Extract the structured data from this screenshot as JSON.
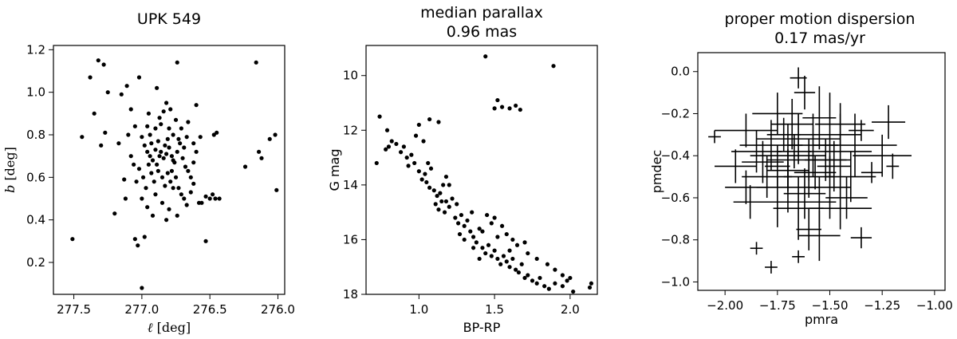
{
  "chart_data": [
    {
      "type": "scatter",
      "title": "UPK 549",
      "xlabel_symbol": "ℓ",
      "xlabel_unit": " [deg]",
      "ylabel_symbol": "b",
      "ylabel_unit": " [deg]",
      "xlim": [
        277.65,
        275.95
      ],
      "ylim": [
        0.05,
        1.22
      ],
      "xticks": [
        277.5,
        277.0,
        276.5,
        276.0
      ],
      "xtick_labels": [
        "277.5",
        "277.0",
        "276.5",
        "276.0"
      ],
      "yticks": [
        0.2,
        0.4,
        0.6,
        0.8,
        1.0,
        1.2
      ],
      "ytick_labels": [
        "0.2",
        "0.4",
        "0.6",
        "0.8",
        "1.0",
        "1.2"
      ],
      "points": [
        [
          277.32,
          1.15
        ],
        [
          277.28,
          1.13
        ],
        [
          277.38,
          1.07
        ],
        [
          277.25,
          1.0
        ],
        [
          277.35,
          0.9
        ],
        [
          277.44,
          0.79
        ],
        [
          277.3,
          0.75
        ],
        [
          277.27,
          0.81
        ],
        [
          277.51,
          0.31
        ],
        [
          277.02,
          1.07
        ],
        [
          277.11,
          1.03
        ],
        [
          276.89,
          1.02
        ],
        [
          276.82,
          0.95
        ],
        [
          277.15,
          0.99
        ],
        [
          277.08,
          0.92
        ],
        [
          276.95,
          0.9
        ],
        [
          276.75,
          0.87
        ],
        [
          276.66,
          0.86
        ],
        [
          276.6,
          0.94
        ],
        [
          276.74,
          1.14
        ],
        [
          276.16,
          1.14
        ],
        [
          276.57,
          0.79
        ],
        [
          276.47,
          0.8
        ],
        [
          276.45,
          0.81
        ],
        [
          276.24,
          0.65
        ],
        [
          276.14,
          0.72
        ],
        [
          276.12,
          0.69
        ],
        [
          276.06,
          0.78
        ],
        [
          276.02,
          0.8
        ],
        [
          276.01,
          0.54
        ],
        [
          276.5,
          0.5
        ],
        [
          276.56,
          0.48
        ],
        [
          276.53,
          0.51
        ],
        [
          276.48,
          0.52
        ],
        [
          276.46,
          0.5
        ],
        [
          276.43,
          0.5
        ],
        [
          276.58,
          0.48
        ],
        [
          276.67,
          0.47
        ],
        [
          276.74,
          0.42
        ],
        [
          276.53,
          0.3
        ],
        [
          277.05,
          0.31
        ],
        [
          277.03,
          0.28
        ],
        [
          276.98,
          0.32
        ],
        [
          277.0,
          0.08
        ],
        [
          277.2,
          0.43
        ],
        [
          277.12,
          0.5
        ],
        [
          277.13,
          0.59
        ],
        [
          277.17,
          0.76
        ],
        [
          277.1,
          0.8
        ],
        [
          277.05,
          0.84
        ],
        [
          277.0,
          0.79
        ],
        [
          276.98,
          0.75
        ],
        [
          276.96,
          0.72
        ],
        [
          276.94,
          0.7
        ],
        [
          276.92,
          0.68
        ],
        [
          276.9,
          0.73
        ],
        [
          276.88,
          0.77
        ],
        [
          276.86,
          0.72
        ],
        [
          276.84,
          0.69
        ],
        [
          276.82,
          0.71
        ],
        [
          276.8,
          0.74
        ],
        [
          276.78,
          0.7
        ],
        [
          276.76,
          0.67
        ],
        [
          276.74,
          0.72
        ],
        [
          276.72,
          0.76
        ],
        [
          276.7,
          0.69
        ],
        [
          276.68,
          0.65
        ],
        [
          276.66,
          0.63
        ],
        [
          276.64,
          0.6
        ],
        [
          276.62,
          0.67
        ],
        [
          276.6,
          0.72
        ],
        [
          276.93,
          0.62
        ],
        [
          276.91,
          0.58
        ],
        [
          276.88,
          0.63
        ],
        [
          276.85,
          0.6
        ],
        [
          276.83,
          0.56
        ],
        [
          276.81,
          0.62
        ],
        [
          276.79,
          0.58
        ],
        [
          276.77,
          0.55
        ],
        [
          276.97,
          0.55
        ],
        [
          276.99,
          0.6
        ],
        [
          277.02,
          0.64
        ],
        [
          277.06,
          0.66
        ],
        [
          277.08,
          0.7
        ],
        [
          277.04,
          0.58
        ],
        [
          276.86,
          0.85
        ],
        [
          276.8,
          0.83
        ],
        [
          276.77,
          0.8
        ],
        [
          276.73,
          0.78
        ],
        [
          276.71,
          0.83
        ],
        [
          276.9,
          0.83
        ],
        [
          276.94,
          0.8
        ],
        [
          276.96,
          0.84
        ],
        [
          276.87,
          0.88
        ],
        [
          276.84,
          0.91
        ],
        [
          276.79,
          0.92
        ],
        [
          276.75,
          0.6
        ],
        [
          276.73,
          0.55
        ],
        [
          276.71,
          0.52
        ],
        [
          276.69,
          0.5
        ],
        [
          276.9,
          0.52
        ],
        [
          276.85,
          0.48
        ],
        [
          276.8,
          0.45
        ],
        [
          276.96,
          0.46
        ],
        [
          277.0,
          0.5
        ],
        [
          276.62,
          0.57
        ],
        [
          276.64,
          0.53
        ],
        [
          276.92,
          0.42
        ],
        [
          276.82,
          0.4
        ],
        [
          276.78,
          0.63
        ],
        [
          276.89,
          0.66
        ],
        [
          276.83,
          0.75
        ],
        [
          276.77,
          0.68
        ],
        [
          276.87,
          0.7
        ],
        [
          276.95,
          0.66
        ],
        [
          276.93,
          0.76
        ],
        [
          276.81,
          0.78
        ],
        [
          276.69,
          0.74
        ],
        [
          276.67,
          0.79
        ],
        [
          276.62,
          0.76
        ]
      ]
    },
    {
      "type": "scatter",
      "title_lines": [
        "median parallax",
        "0.96 mas"
      ],
      "xlabel": "BP-RP",
      "ylabel": "G mag",
      "xlim": [
        0.65,
        2.18
      ],
      "ylim": [
        18.0,
        8.9
      ],
      "xticks": [
        1.0,
        1.5,
        2.0
      ],
      "xtick_labels": [
        "1.0",
        "1.5",
        "2.0"
      ],
      "yticks": [
        10,
        12,
        14,
        16,
        18
      ],
      "ytick_labels": [
        "10",
        "12",
        "14",
        "16",
        "18"
      ],
      "points": [
        [
          1.44,
          9.3
        ],
        [
          1.89,
          9.65
        ],
        [
          1.52,
          10.9
        ],
        [
          1.5,
          11.2
        ],
        [
          1.55,
          11.15
        ],
        [
          1.6,
          11.2
        ],
        [
          1.64,
          11.1
        ],
        [
          1.67,
          11.25
        ],
        [
          0.72,
          13.2
        ],
        [
          0.74,
          11.5
        ],
        [
          0.79,
          12.0
        ],
        [
          0.82,
          12.4
        ],
        [
          0.8,
          12.6
        ],
        [
          0.78,
          12.7
        ],
        [
          0.85,
          12.5
        ],
        [
          0.88,
          12.8
        ],
        [
          0.9,
          12.6
        ],
        [
          0.92,
          13.0
        ],
        [
          0.95,
          12.9
        ],
        [
          0.98,
          12.2
        ],
        [
          1.0,
          11.8
        ],
        [
          1.03,
          12.4
        ],
        [
          1.07,
          11.6
        ],
        [
          1.13,
          11.7
        ],
        [
          0.93,
          13.3
        ],
        [
          0.97,
          13.2
        ],
        [
          1.0,
          13.5
        ],
        [
          1.02,
          13.8
        ],
        [
          1.04,
          13.6
        ],
        [
          1.06,
          13.2
        ],
        [
          1.08,
          13.4
        ],
        [
          1.05,
          13.9
        ],
        [
          1.07,
          14.1
        ],
        [
          1.1,
          14.2
        ],
        [
          1.12,
          14.4
        ],
        [
          1.14,
          14.3
        ],
        [
          1.16,
          14.0
        ],
        [
          1.18,
          13.7
        ],
        [
          1.11,
          14.7
        ],
        [
          1.13,
          14.9
        ],
        [
          1.15,
          14.6
        ],
        [
          1.17,
          15.0
        ],
        [
          1.2,
          14.8
        ],
        [
          1.22,
          14.5
        ],
        [
          1.24,
          15.2
        ],
        [
          1.26,
          15.4
        ],
        [
          1.28,
          15.1
        ],
        [
          1.3,
          15.5
        ],
        [
          1.32,
          15.3
        ],
        [
          1.34,
          15.7
        ],
        [
          1.36,
          15.9
        ],
        [
          1.38,
          16.1
        ],
        [
          1.3,
          16.0
        ],
        [
          1.27,
          15.8
        ],
        [
          1.4,
          15.6
        ],
        [
          1.42,
          16.3
        ],
        [
          1.44,
          16.5
        ],
        [
          1.46,
          16.2
        ],
        [
          1.48,
          16.6
        ],
        [
          1.5,
          16.4
        ],
        [
          1.52,
          16.7
        ],
        [
          1.54,
          16.9
        ],
        [
          1.56,
          16.6
        ],
        [
          1.58,
          16.8
        ],
        [
          1.6,
          17.0
        ],
        [
          1.62,
          16.7
        ],
        [
          1.64,
          17.1
        ],
        [
          1.66,
          17.2
        ],
        [
          1.68,
          16.9
        ],
        [
          1.7,
          17.4
        ],
        [
          1.72,
          17.3
        ],
        [
          1.75,
          17.5
        ],
        [
          1.78,
          17.6
        ],
        [
          1.8,
          17.4
        ],
        [
          1.83,
          17.7
        ],
        [
          1.86,
          17.8
        ],
        [
          1.9,
          17.6
        ],
        [
          1.95,
          17.7
        ],
        [
          1.98,
          17.5
        ],
        [
          2.0,
          17.4
        ],
        [
          2.02,
          17.9
        ],
        [
          2.14,
          17.6
        ],
        [
          2.13,
          17.75
        ],
        [
          1.45,
          15.1
        ],
        [
          1.5,
          15.2
        ],
        [
          1.55,
          15.5
        ],
        [
          1.58,
          15.8
        ],
        [
          1.62,
          16.0
        ],
        [
          1.65,
          16.2
        ],
        [
          1.7,
          16.1
        ],
        [
          1.72,
          16.5
        ],
        [
          1.78,
          16.7
        ],
        [
          1.85,
          16.9
        ],
        [
          1.9,
          17.1
        ],
        [
          1.95,
          17.3
        ],
        [
          1.35,
          15.0
        ],
        [
          1.25,
          14.7
        ],
        [
          1.2,
          14.0
        ],
        [
          1.18,
          14.6
        ],
        [
          1.36,
          16.3
        ],
        [
          1.4,
          16.7
        ],
        [
          1.52,
          15.9
        ],
        [
          1.6,
          16.4
        ],
        [
          1.48,
          15.4
        ],
        [
          1.42,
          15.7
        ]
      ]
    },
    {
      "type": "scatter",
      "title_lines": [
        "proper motion dispersion",
        "0.17 mas/yr"
      ],
      "xlabel": "pmra",
      "ylabel": "pmdec",
      "xlim": [
        -2.13,
        -0.95
      ],
      "ylim": [
        -1.04,
        0.09
      ],
      "xticks": [
        -2.0,
        -1.75,
        -1.5,
        -1.25,
        -1.0
      ],
      "xtick_labels": [
        "−2.00",
        "−1.75",
        "−1.50",
        "−1.25",
        "−1.00"
      ],
      "yticks": [
        0.0,
        -0.2,
        -0.4,
        -0.6,
        -0.8,
        -1.0
      ],
      "ytick_labels": [
        "0.0",
        "−0.2",
        "−0.4",
        "−0.6",
        "−0.8",
        "−1.0"
      ],
      "points": [
        [
          -1.65,
          -0.03,
          0.04,
          0.05
        ],
        [
          -1.62,
          -0.1,
          0.05,
          0.08
        ],
        [
          -1.75,
          -0.2,
          0.12,
          0.1
        ],
        [
          -1.68,
          -0.25,
          0.1,
          0.12
        ],
        [
          -1.55,
          -0.22,
          0.08,
          0.15
        ],
        [
          -1.45,
          -0.25,
          0.12,
          0.1
        ],
        [
          -1.35,
          -0.28,
          0.06,
          0.05
        ],
        [
          -1.22,
          -0.24,
          0.08,
          0.08
        ],
        [
          -1.2,
          -0.45,
          0.03,
          0.06
        ],
        [
          -1.25,
          -0.4,
          0.14,
          0.1
        ],
        [
          -1.38,
          -0.35,
          0.2,
          0.15
        ],
        [
          -1.5,
          -0.3,
          0.15,
          0.2
        ],
        [
          -1.58,
          -0.35,
          0.12,
          0.15
        ],
        [
          -1.6,
          -0.42,
          0.2,
          0.1
        ],
        [
          -1.7,
          -0.4,
          0.18,
          0.15
        ],
        [
          -1.78,
          -0.35,
          0.15,
          0.12
        ],
        [
          -1.85,
          -0.38,
          0.12,
          0.1
        ],
        [
          -1.95,
          -0.45,
          0.1,
          0.08
        ],
        [
          -2.05,
          -0.31,
          0.03,
          0.03
        ],
        [
          -1.9,
          -0.28,
          0.15,
          0.08
        ],
        [
          -1.8,
          -0.5,
          0.12,
          0.1
        ],
        [
          -1.7,
          -0.55,
          0.15,
          0.12
        ],
        [
          -1.6,
          -0.5,
          0.12,
          0.1
        ],
        [
          -1.5,
          -0.55,
          0.1,
          0.15
        ],
        [
          -1.4,
          -0.5,
          0.12,
          0.12
        ],
        [
          -1.3,
          -0.48,
          0.05,
          0.05
        ],
        [
          -1.9,
          -0.55,
          0.1,
          0.08
        ],
        [
          -1.75,
          -0.62,
          0.18,
          0.12
        ],
        [
          -1.65,
          -0.65,
          0.12,
          0.15
        ],
        [
          -1.55,
          -0.62,
          0.08,
          0.12
        ],
        [
          -1.45,
          -0.65,
          0.15,
          0.1
        ],
        [
          -1.6,
          -0.75,
          0.06,
          0.1
        ],
        [
          -1.55,
          -0.78,
          0.1,
          0.12
        ],
        [
          -1.85,
          -0.84,
          0.03,
          0.03
        ],
        [
          -1.78,
          -0.93,
          0.03,
          0.03
        ],
        [
          -1.65,
          -0.88,
          0.03,
          0.03
        ],
        [
          -1.35,
          -0.79,
          0.05,
          0.05
        ],
        [
          -1.45,
          -0.38,
          0.15,
          0.18
        ],
        [
          -1.65,
          -0.32,
          0.2,
          0.12
        ],
        [
          -1.7,
          -0.47,
          0.1,
          0.1
        ],
        [
          -1.72,
          -0.3,
          0.08,
          0.08
        ],
        [
          -1.62,
          -0.58,
          0.1,
          0.12
        ],
        [
          -1.52,
          -0.42,
          0.1,
          0.1
        ],
        [
          -1.82,
          -0.43,
          0.1,
          0.1
        ],
        [
          -1.67,
          -0.38,
          0.08,
          0.08
        ],
        [
          -1.75,
          -0.45,
          0.06,
          0.1
        ],
        [
          -1.57,
          -0.48,
          0.1,
          0.08
        ],
        [
          -1.48,
          -0.45,
          0.08,
          0.12
        ],
        [
          -1.42,
          -0.6,
          0.1,
          0.1
        ],
        [
          -1.88,
          -0.62,
          0.08,
          0.08
        ]
      ]
    }
  ]
}
